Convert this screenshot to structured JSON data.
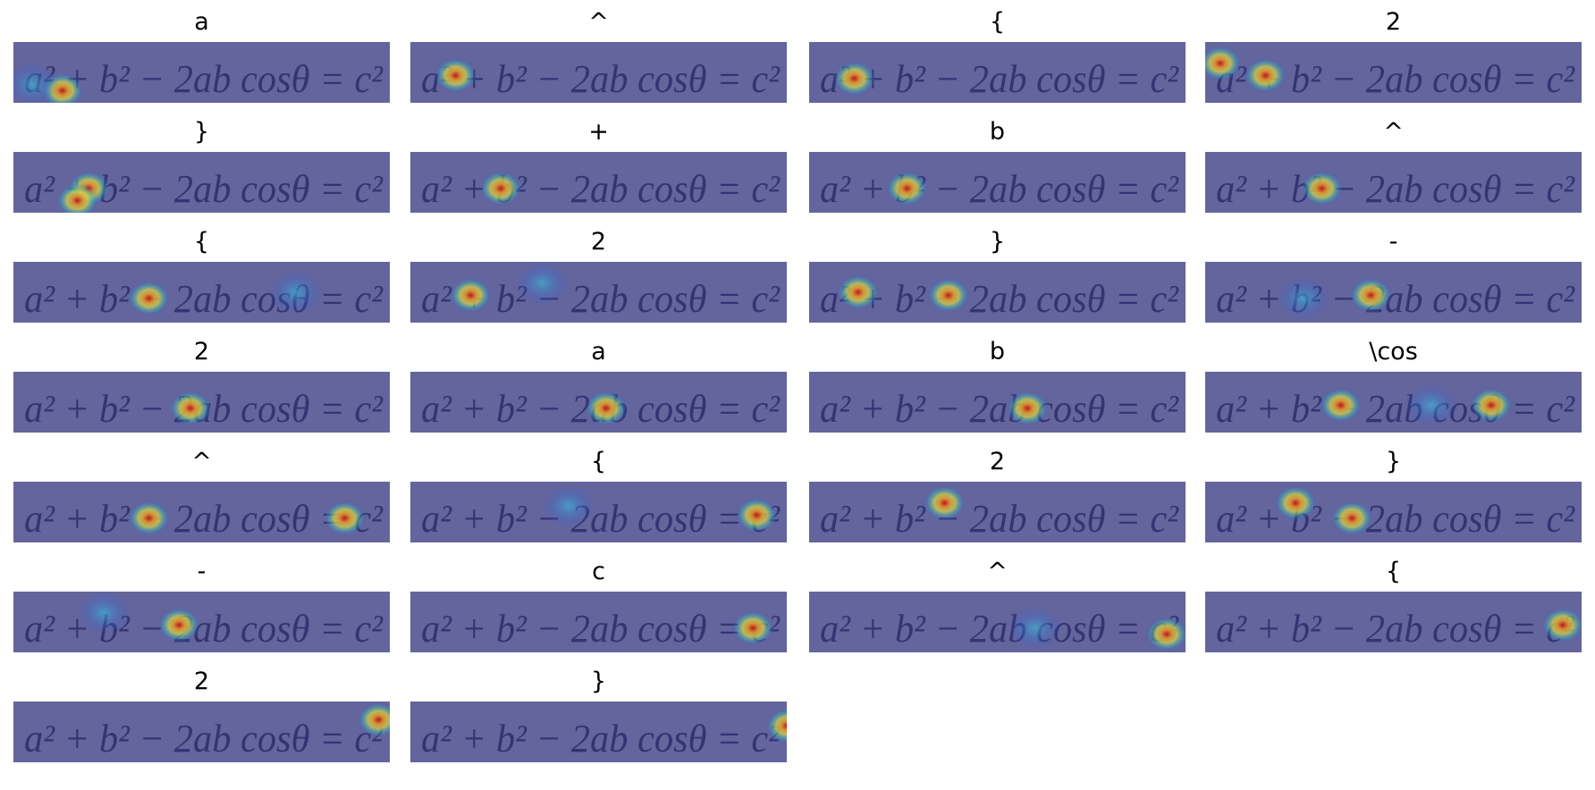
{
  "image_text": "a² + b² − 2ab cosθ = c²",
  "panels": [
    {
      "title": "a"
    },
    {
      "title": "^"
    },
    {
      "title": "{"
    },
    {
      "title": "2"
    },
    {
      "title": "}"
    },
    {
      "title": "+"
    },
    {
      "title": "b"
    },
    {
      "title": "^"
    },
    {
      "title": "{"
    },
    {
      "title": "2"
    },
    {
      "title": "}"
    },
    {
      "title": "-"
    },
    {
      "title": "2"
    },
    {
      "title": "a"
    },
    {
      "title": "b"
    },
    {
      "title": "\\cos"
    },
    {
      "title": "^"
    },
    {
      "title": "{"
    },
    {
      "title": "2"
    },
    {
      "title": "}"
    },
    {
      "title": "-"
    },
    {
      "title": "c"
    },
    {
      "title": "^"
    },
    {
      "title": "{"
    },
    {
      "title": "2"
    },
    {
      "title": "}"
    }
  ]
}
